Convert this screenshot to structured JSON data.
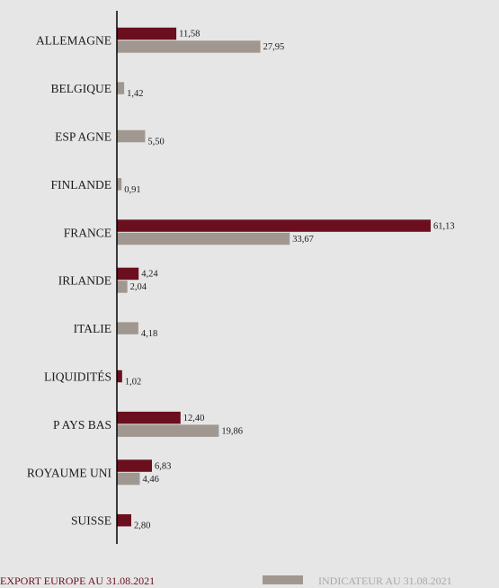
{
  "chart_data": {
    "type": "bar",
    "orientation": "horizontal",
    "categories": [
      "ALLEMAGNE",
      "BELGIQUE",
      "ESP AGNE",
      "FINLANDE",
      "FRANCE",
      "IRLANDE",
      "ITALIE",
      "LIQUIDITÉS",
      "P AYS BAS",
      "ROYAUME UNI",
      "SUISSE"
    ],
    "series": [
      {
        "name": "EXPORT EUROPE AU 31.08.2021",
        "color": "#6b0f1e",
        "values": [
          11.58,
          null,
          null,
          null,
          61.13,
          4.24,
          null,
          1.02,
          12.4,
          6.83,
          2.8
        ],
        "labels": [
          "11,58",
          "",
          "",
          "",
          "61,13",
          "4,24",
          "",
          "1,02",
          "12,40",
          "6,83",
          "2,80"
        ]
      },
      {
        "name": "INDICATEUR AU 31.08.2021",
        "color": "#a09890",
        "values": [
          27.95,
          1.42,
          5.5,
          0.91,
          33.67,
          2.04,
          4.18,
          null,
          19.86,
          4.46,
          null
        ],
        "labels": [
          "27,95",
          "1,42",
          "5,50",
          "0,91",
          "33,67",
          "2,04",
          "4,18",
          "",
          "19,86",
          "4,46",
          ""
        ]
      }
    ],
    "xlim": [
      0,
      61.13
    ],
    "grid": false,
    "legend": "bottom"
  }
}
